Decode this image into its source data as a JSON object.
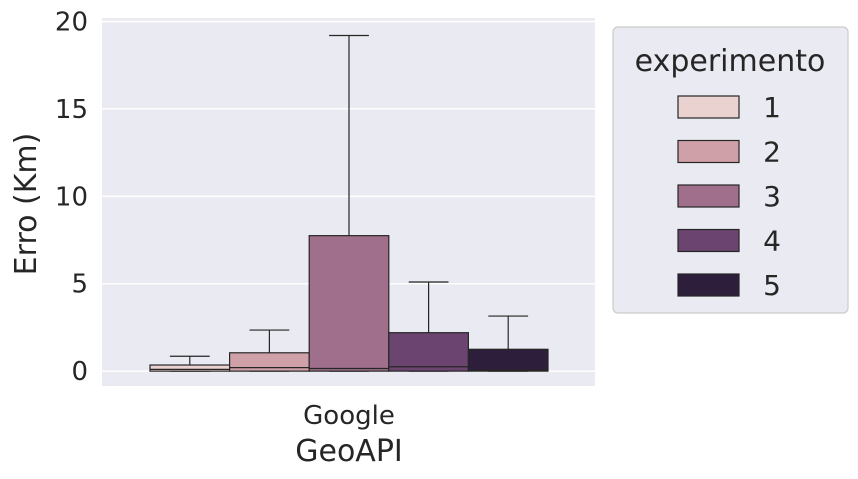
{
  "chart_data": {
    "type": "box",
    "xlabel": "GeoAPI",
    "ylabel": "Erro (Km)",
    "categories": [
      "Google"
    ],
    "ylim": [
      -0.85,
      20.2
    ],
    "yticks": [
      0,
      5,
      10,
      15,
      20
    ],
    "grid": true,
    "legend": {
      "title": "experimento",
      "placement": "outside-right"
    },
    "series": [
      {
        "name": "1",
        "color": "#e9d2d0",
        "q1": 0.0,
        "median": 0.1,
        "q3": 0.35,
        "whisker_low": 0.0,
        "whisker_high": 0.85
      },
      {
        "name": "2",
        "color": "#cfa0a8",
        "q1": 0.0,
        "median": 0.2,
        "q3": 1.05,
        "whisker_low": 0.0,
        "whisker_high": 2.35
      },
      {
        "name": "3",
        "color": "#a06f8c",
        "q1": 0.0,
        "median": 0.15,
        "q3": 7.75,
        "whisker_low": 0.0,
        "whisker_high": 19.2
      },
      {
        "name": "4",
        "color": "#6b4470",
        "q1": 0.0,
        "median": 0.25,
        "q3": 2.2,
        "whisker_low": 0.0,
        "whisker_high": 5.1
      },
      {
        "name": "5",
        "color": "#2d1f3b",
        "q1": 0.0,
        "median": 0.05,
        "q3": 1.25,
        "whisker_low": 0.0,
        "whisker_high": 3.15
      }
    ]
  }
}
